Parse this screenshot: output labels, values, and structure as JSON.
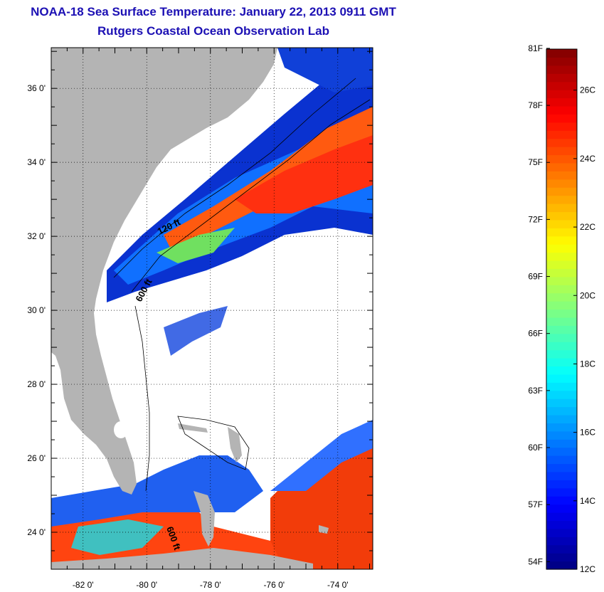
{
  "header": {
    "title_line1": "NOAA-18 Sea Surface Temperature:  January 22, 2013 0911 GMT",
    "title_line2": "Rutgers Coastal Ocean Observation Lab"
  },
  "map": {
    "lon_range": [
      -83.0,
      -72.9
    ],
    "lat_range": [
      23.0,
      37.1
    ],
    "lat_ticks": [
      {
        "value": 36,
        "label": "36 0'"
      },
      {
        "value": 34,
        "label": "34 0'"
      },
      {
        "value": 32,
        "label": "32 0'"
      },
      {
        "value": 30,
        "label": "30 0'"
      },
      {
        "value": 28,
        "label": "28 0'"
      },
      {
        "value": 26,
        "label": "26 0'"
      },
      {
        "value": 24,
        "label": "24 0'"
      }
    ],
    "lon_ticks": [
      {
        "value": -82,
        "label": "-82 0'"
      },
      {
        "value": -80,
        "label": "-80 0'"
      },
      {
        "value": -78,
        "label": "-78 0'"
      },
      {
        "value": -76,
        "label": "-76 0'"
      },
      {
        "value": -74,
        "label": "-74 0'"
      }
    ],
    "contour_labels": [
      "120 ft",
      "600 ft",
      "600 ft"
    ],
    "colors": {
      "land": "#b4b4b4",
      "cloud": "#ffffff",
      "frame": "#000000"
    }
  },
  "colorbar": {
    "range_c": [
      12,
      27.2
    ],
    "colors": [
      "#000080",
      "#0000ff",
      "#0080ff",
      "#00ffff",
      "#80ff80",
      "#ffff00",
      "#ff8000",
      "#ff0000",
      "#800000"
    ],
    "f_labels": [
      "81F",
      "78F",
      "75F",
      "72F",
      "69F",
      "66F",
      "63F",
      "60F",
      "57F",
      "54F"
    ],
    "c_labels": [
      "26C",
      "24C",
      "22C",
      "20C",
      "18C",
      "16C",
      "14C",
      "12C"
    ]
  }
}
